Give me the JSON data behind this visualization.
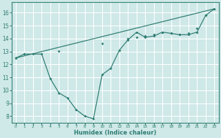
{
  "xlabel": "Humidex (Indice chaleur)",
  "background_color": "#cfe8e8",
  "grid_color": "#ffffff",
  "line_color": "#2e7d72",
  "xlim": [
    -0.5,
    23.5
  ],
  "ylim": [
    7.5,
    16.8
  ],
  "xticks": [
    0,
    1,
    2,
    3,
    4,
    5,
    6,
    7,
    8,
    9,
    10,
    11,
    12,
    13,
    14,
    15,
    16,
    17,
    18,
    19,
    20,
    21,
    22,
    23
  ],
  "yticks": [
    8,
    9,
    10,
    11,
    12,
    13,
    14,
    15,
    16
  ],
  "line1_x": [
    0,
    1,
    2,
    3,
    4,
    5,
    6,
    7,
    8,
    9,
    10,
    11,
    12,
    13,
    14,
    15,
    16,
    17,
    18,
    19,
    20,
    21,
    22,
    23
  ],
  "line1_y": [
    12.5,
    12.8,
    12.8,
    12.8,
    10.9,
    9.8,
    9.4,
    8.5,
    8.0,
    7.8,
    11.2,
    11.7,
    13.1,
    13.9,
    14.5,
    14.1,
    14.2,
    14.5,
    14.4,
    14.3,
    14.3,
    14.5,
    15.8,
    16.3
  ],
  "line2_x": [
    0,
    23
  ],
  "line2_y": [
    12.5,
    16.3
  ],
  "marker_x2": [
    0,
    5,
    10,
    13,
    14,
    15,
    16,
    17,
    18,
    19,
    20,
    21,
    22,
    23
  ],
  "marker_y2": [
    12.5,
    13.05,
    13.6,
    14.0,
    14.1,
    14.2,
    14.3,
    14.5,
    14.4,
    14.3,
    14.4,
    14.8,
    15.8,
    16.3
  ]
}
